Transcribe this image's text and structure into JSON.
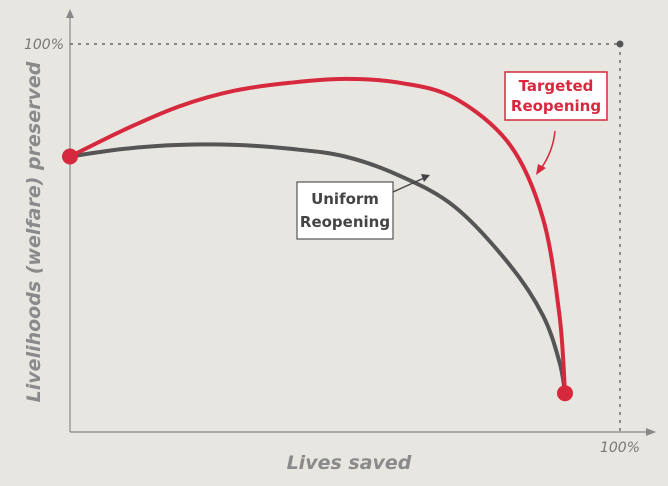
{
  "chart_data": {
    "type": "line",
    "xlabel": "Lives saved",
    "ylabel": "Livelihoods (welfare) preserved",
    "x_tick_label": "100%",
    "y_tick_label": "100%",
    "grid": false,
    "series": [
      {
        "name": "Targeted Reopening",
        "color": "#d6293e",
        "points": [
          [
            0,
            71
          ],
          [
            10,
            78
          ],
          [
            20,
            84
          ],
          [
            30,
            88
          ],
          [
            40,
            90
          ],
          [
            50,
            91
          ],
          [
            60,
            90
          ],
          [
            70,
            86
          ],
          [
            80,
            74
          ],
          [
            86,
            55
          ],
          [
            89,
            30
          ],
          [
            90,
            10
          ]
        ]
      },
      {
        "name": "Uniform Reopening",
        "color": "#555555",
        "points": [
          [
            0,
            71
          ],
          [
            10,
            73
          ],
          [
            20,
            74
          ],
          [
            30,
            74
          ],
          [
            40,
            73
          ],
          [
            50,
            71
          ],
          [
            60,
            66
          ],
          [
            70,
            58
          ],
          [
            80,
            43
          ],
          [
            86,
            30
          ],
          [
            89,
            18
          ],
          [
            90,
            10
          ]
        ]
      }
    ],
    "endpoints_color": "#d6293e",
    "annotations": [
      {
        "lines": [
          "Targeted",
          "Reopening"
        ],
        "color": "#d6293e",
        "points_to": [
          86,
          69
        ]
      },
      {
        "lines": [
          "Uniform",
          "Reopening"
        ],
        "color": "#444444",
        "points_to": [
          65,
          68
        ]
      }
    ],
    "axis_color": "#888888",
    "reference_line_color": "#666666"
  }
}
